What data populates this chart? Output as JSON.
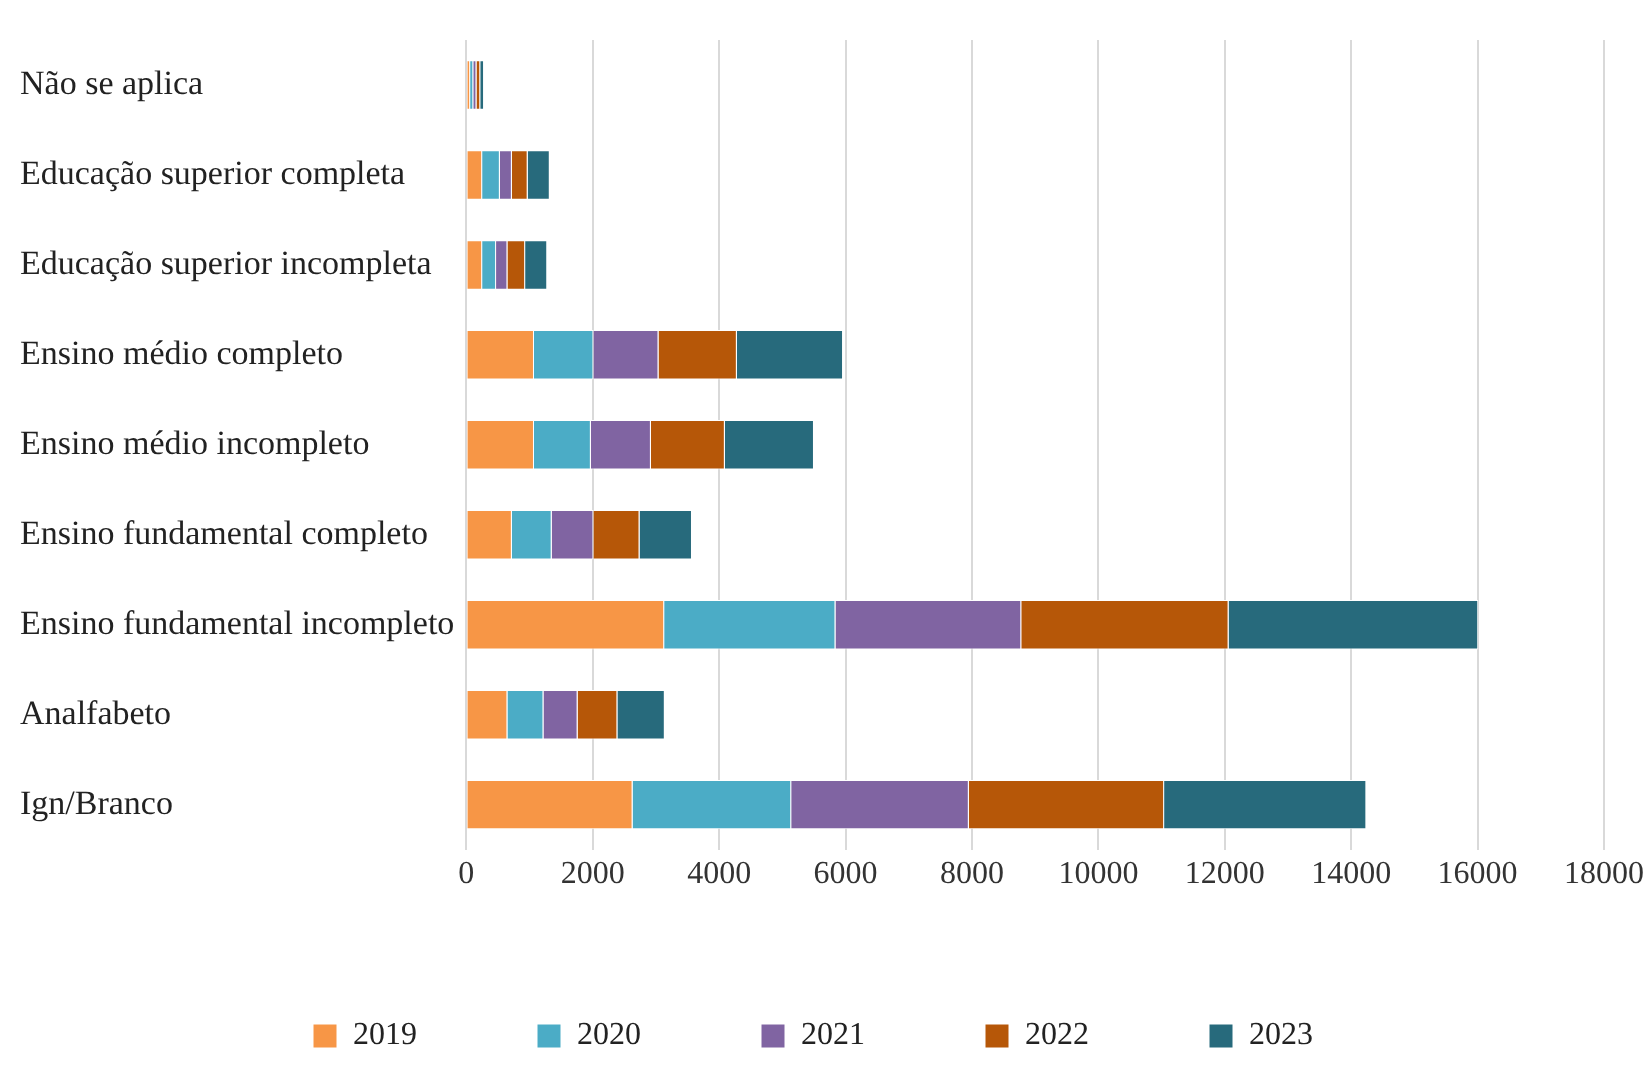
{
  "chart_data": {
    "type": "bar",
    "orientation": "horizontal",
    "stacked": true,
    "categories": [
      "Não se aplica",
      "Educação superior completa",
      "Educação superior incompleta",
      "Ensino médio completo",
      "Ensino médio incompleto",
      "Ensino fundamental completo",
      "Ensino fundamental incompleto",
      "Analfabeto",
      "Ign/Branco"
    ],
    "series": [
      {
        "name": "2019",
        "color": "#f79646",
        "values": [
          60,
          250,
          250,
          1070,
          1070,
          720,
          3130,
          650,
          2630
        ]
      },
      {
        "name": "2020",
        "color": "#4bacc6",
        "values": [
          50,
          280,
          220,
          940,
          900,
          630,
          2710,
          570,
          2510
        ]
      },
      {
        "name": "2021",
        "color": "#8064a2",
        "values": [
          50,
          190,
          180,
          1030,
          950,
          660,
          2940,
          540,
          2810
        ]
      },
      {
        "name": "2022",
        "color": "#b65708",
        "values": [
          60,
          250,
          280,
          1240,
          1170,
          730,
          3280,
          630,
          3090
        ]
      },
      {
        "name": "2023",
        "color": "#276a7c",
        "values": [
          60,
          350,
          350,
          1680,
          1410,
          830,
          3950,
          750,
          3200
        ]
      }
    ],
    "xlim": [
      0,
      18000
    ],
    "xticks": [
      0,
      2000,
      4000,
      6000,
      8000,
      10000,
      12000,
      14000,
      16000,
      18000
    ],
    "grid": "x",
    "legend": "bottom"
  }
}
